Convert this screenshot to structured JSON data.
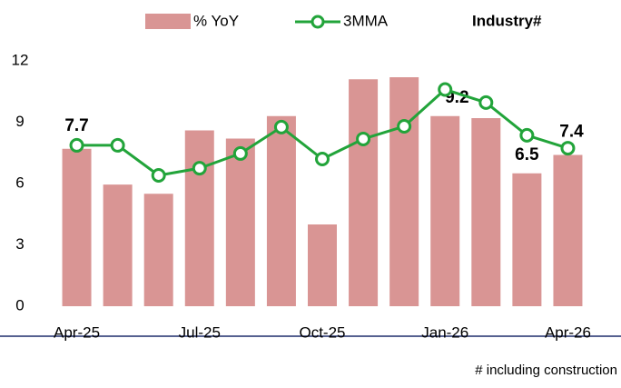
{
  "chart_data": {
    "type": "bar_line",
    "categories": [
      "Apr-25",
      null,
      null,
      "Jul-25",
      null,
      null,
      "Oct-25",
      null,
      null,
      "Jan-26",
      null,
      null,
      "Apr-26"
    ],
    "series": [
      {
        "name": "% YoY",
        "color": "#d99594",
        "type": "bar",
        "values": [
          7.7,
          5.95,
          5.5,
          8.6,
          8.2,
          9.3,
          4.0,
          11.1,
          11.2,
          9.3,
          9.2,
          6.5,
          7.4
        ],
        "value_labels": [
          "7.7",
          null,
          null,
          null,
          null,
          null,
          null,
          null,
          null,
          null,
          "9.2",
          "6.5",
          "7.4"
        ]
      },
      {
        "name": "3MMA",
        "color": "#22a43a",
        "type": "line",
        "values": [
          7.87,
          7.87,
          6.4,
          6.75,
          7.47,
          8.76,
          7.2,
          8.18,
          8.8,
          10.6,
          9.96,
          8.36,
          7.73
        ]
      }
    ],
    "annotation": "Industry#",
    "footnote": "# including construction",
    "ylim": [
      0,
      12
    ],
    "yticks": [
      0,
      3,
      6,
      9,
      12
    ],
    "grid": false
  }
}
